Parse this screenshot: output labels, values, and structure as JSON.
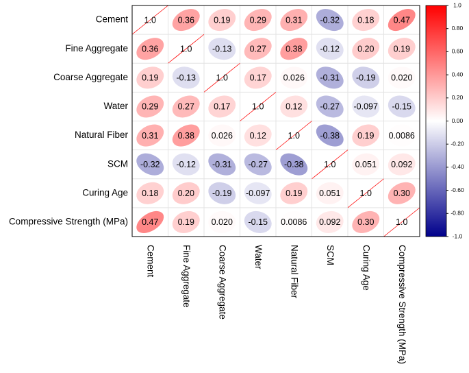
{
  "chart_data": {
    "type": "correlation",
    "categories": [
      "Cement",
      "Fine Aggregate",
      "Coarse Aggregate",
      "Water",
      "Natural Fiber",
      "SCM",
      "Curing Age",
      "Compressive Strength (MPa)"
    ],
    "matrix": [
      [
        1.0,
        0.36,
        0.19,
        0.29,
        0.31,
        -0.32,
        0.18,
        0.47
      ],
      [
        0.36,
        1.0,
        -0.13,
        0.27,
        0.38,
        -0.12,
        0.2,
        0.19
      ],
      [
        0.19,
        -0.13,
        1.0,
        0.17,
        0.026,
        -0.31,
        -0.19,
        0.02
      ],
      [
        0.29,
        0.27,
        0.17,
        1.0,
        0.12,
        -0.27,
        -0.097,
        -0.15
      ],
      [
        0.31,
        0.38,
        0.026,
        0.12,
        1.0,
        -0.38,
        0.19,
        0.0086
      ],
      [
        -0.32,
        -0.12,
        -0.31,
        -0.27,
        -0.38,
        1.0,
        0.051,
        0.092
      ],
      [
        0.18,
        0.2,
        -0.19,
        -0.097,
        0.19,
        0.051,
        1.0,
        0.3
      ],
      [
        0.47,
        0.19,
        0.02,
        -0.15,
        0.0086,
        0.092,
        0.3,
        1.0
      ]
    ],
    "value_labels": [
      [
        "1.0",
        "0.36",
        "0.19",
        "0.29",
        "0.31",
        "-0.32",
        "0.18",
        "0.47"
      ],
      [
        "0.36",
        "1.0",
        "-0.13",
        "0.27",
        "0.38",
        "-0.12",
        "0.20",
        "0.19"
      ],
      [
        "0.19",
        "-0.13",
        "1.0",
        "0.17",
        "0.026",
        "-0.31",
        "-0.19",
        "0.020"
      ],
      [
        "0.29",
        "0.27",
        "0.17",
        "1.0",
        "0.12",
        "-0.27",
        "-0.097",
        "-0.15"
      ],
      [
        "0.31",
        "0.38",
        "0.026",
        "0.12",
        "1.0",
        "-0.38",
        "0.19",
        "0.0086"
      ],
      [
        "-0.32",
        "-0.12",
        "-0.31",
        "-0.27",
        "-0.38",
        "1.0",
        "0.051",
        "0.092"
      ],
      [
        "0.18",
        "0.20",
        "-0.19",
        "-0.097",
        "0.19",
        "0.051",
        "1.0",
        "0.30"
      ],
      [
        "0.47",
        "0.19",
        "0.020",
        "-0.15",
        "0.0086",
        "0.092",
        "0.30",
        "1.0"
      ]
    ],
    "colors": [
      "#00008b",
      "#ffffff",
      "#ff0000"
    ],
    "clim": [
      -1,
      1
    ],
    "cticks": [
      {
        "value": 1,
        "label": "1.0"
      },
      {
        "value": 0.8,
        "label": "0.80"
      },
      {
        "value": 0.6,
        "label": "0.60"
      },
      {
        "value": 0.4,
        "label": "0.40"
      },
      {
        "value": 0.2,
        "label": "0.20"
      },
      {
        "value": 0,
        "label": "0.00"
      },
      {
        "value": -0.2,
        "label": "-0.20"
      },
      {
        "value": -0.4,
        "label": "-0.40"
      },
      {
        "value": -0.6,
        "label": "-0.60"
      },
      {
        "value": -0.8,
        "label": "-0.80"
      },
      {
        "value": -1,
        "label": "-1.0"
      }
    ]
  }
}
